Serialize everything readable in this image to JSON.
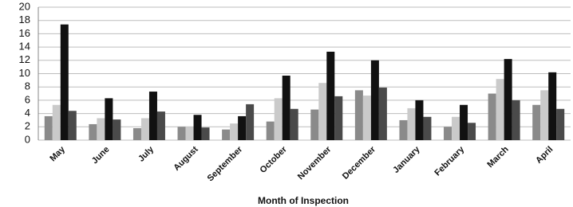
{
  "chart_data": {
    "type": "bar",
    "x_label": "Month of Inspection",
    "categories": [
      "May",
      "June",
      "July",
      "August",
      "September",
      "October",
      "November",
      "December",
      "January",
      "February",
      "March",
      "April"
    ],
    "series": [
      {
        "color": "#8a8a8a",
        "values": [
          3.6,
          2.4,
          1.8,
          2.0,
          1.6,
          2.8,
          4.6,
          7.5,
          3.0,
          2.0,
          7.0,
          5.3
        ]
      },
      {
        "color": "#cacaca",
        "values": [
          5.3,
          3.3,
          3.3,
          2.0,
          2.5,
          6.3,
          8.6,
          6.7,
          4.8,
          3.5,
          9.2,
          7.5
        ]
      },
      {
        "color": "#111111",
        "values": [
          17.4,
          6.3,
          7.3,
          3.8,
          3.6,
          9.7,
          13.3,
          12.0,
          6.0,
          5.3,
          12.2,
          10.2
        ]
      },
      {
        "color": "#4a4a4a",
        "values": [
          4.4,
          3.1,
          4.3,
          1.9,
          5.4,
          4.7,
          6.6,
          7.9,
          3.5,
          2.6,
          6.0,
          4.7
        ]
      }
    ],
    "ylim": [
      0,
      20
    ],
    "yticks": [
      0,
      2,
      4,
      6,
      8,
      10,
      12,
      14,
      16,
      18,
      20
    ],
    "grid": true
  }
}
